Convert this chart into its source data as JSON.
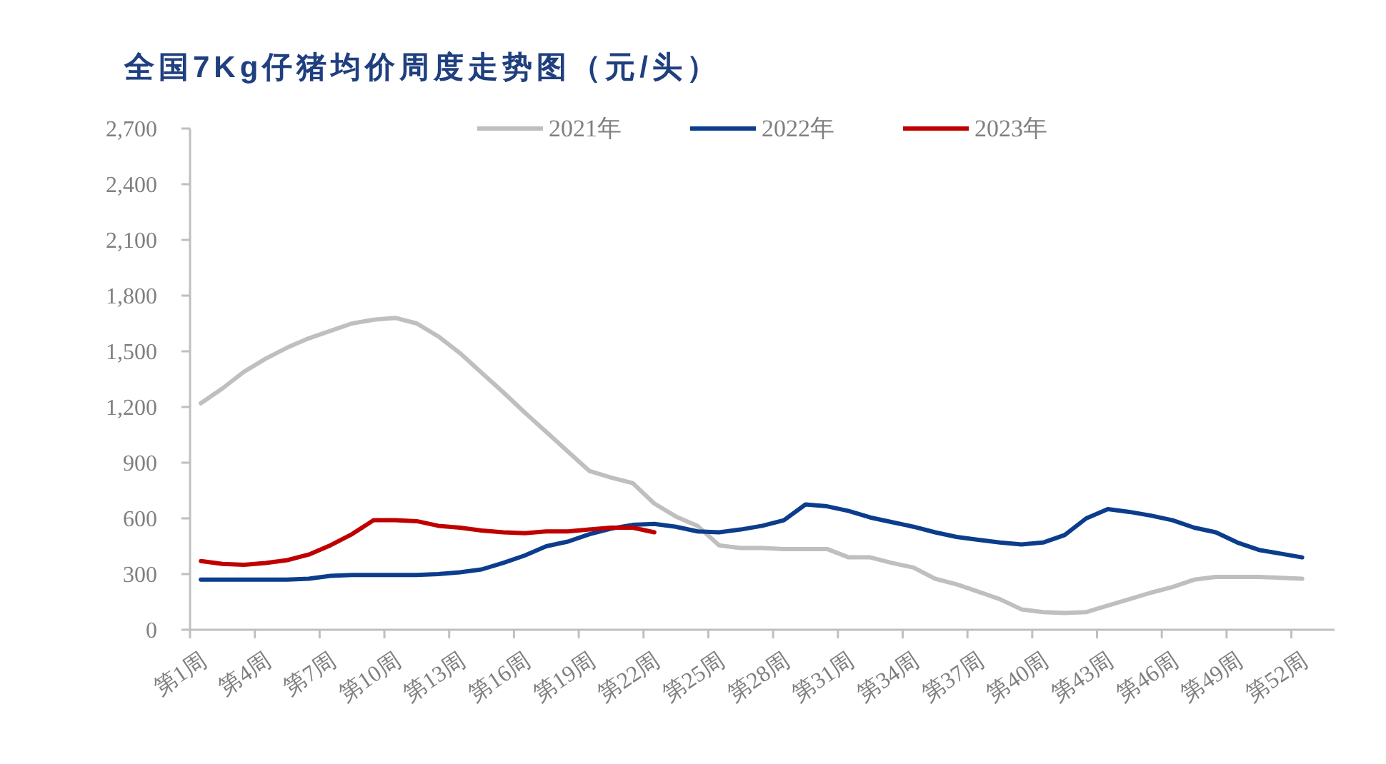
{
  "chart_data": {
    "type": "line",
    "title": "全国7Kg仔猪均价周度走势图（元/头）",
    "categories": [
      "第1周",
      null,
      null,
      "第4周",
      null,
      null,
      "第7周",
      null,
      null,
      "第10周",
      null,
      null,
      "第13周",
      null,
      null,
      "第16周",
      null,
      null,
      "第19周",
      null,
      null,
      "第22周",
      null,
      null,
      "第25周",
      null,
      null,
      "第28周",
      null,
      null,
      "第31周",
      null,
      null,
      "第34周",
      null,
      null,
      "第37周",
      null,
      null,
      "第40周",
      null,
      null,
      "第43周",
      null,
      null,
      "第46周",
      null,
      null,
      "第49周",
      null,
      null,
      "第52周",
      null
    ],
    "series": [
      {
        "name": "2021年",
        "color": "#bfbfbf",
        "values": [
          1220,
          1300,
          1390,
          1460,
          1520,
          1570,
          1610,
          1650,
          1670,
          1680,
          1650,
          1580,
          1490,
          1385,
          1280,
          1170,
          1065,
          960,
          855,
          820,
          790,
          680,
          610,
          560,
          455,
          440,
          440,
          435,
          435,
          435,
          390,
          390,
          360,
          335,
          275,
          245,
          205,
          165,
          110,
          95,
          90,
          95,
          130,
          165,
          200,
          230,
          270,
          285,
          285,
          285,
          280,
          275,
          null
        ]
      },
      {
        "name": "2022年",
        "color": "#0b3d8c",
        "values": [
          270,
          270,
          270,
          270,
          270,
          275,
          290,
          295,
          295,
          295,
          295,
          300,
          310,
          325,
          360,
          400,
          450,
          475,
          515,
          545,
          565,
          570,
          555,
          530,
          525,
          540,
          560,
          590,
          675,
          665,
          640,
          605,
          580,
          555,
          525,
          500,
          485,
          470,
          460,
          470,
          510,
          600,
          650,
          635,
          615,
          590,
          550,
          525,
          470,
          430,
          410,
          390,
          null
        ]
      },
      {
        "name": "2023年",
        "color": "#c00000",
        "values": [
          370,
          355,
          350,
          360,
          375,
          405,
          455,
          515,
          590,
          590,
          585,
          560,
          550,
          535,
          525,
          520,
          530,
          530,
          540,
          550,
          550,
          525,
          null,
          null,
          null,
          null,
          null,
          null,
          null,
          null,
          null,
          null,
          null,
          null,
          null,
          null,
          null,
          null,
          null,
          null,
          null,
          null,
          null,
          null,
          null,
          null,
          null,
          null,
          null,
          null,
          null,
          null,
          null
        ]
      }
    ],
    "ylim": [
      0,
      2700
    ],
    "yticks": [
      0,
      300,
      600,
      900,
      {
        "value": 1200,
        "label": "1,200"
      },
      {
        "value": 1500,
        "label": "1,500"
      },
      {
        "value": 1800,
        "label": "1,800"
      },
      {
        "value": 2100,
        "label": "2,100"
      },
      {
        "value": 2400,
        "label": "2,400"
      },
      {
        "value": 2700,
        "label": "2,700"
      }
    ],
    "legend": "top"
  }
}
